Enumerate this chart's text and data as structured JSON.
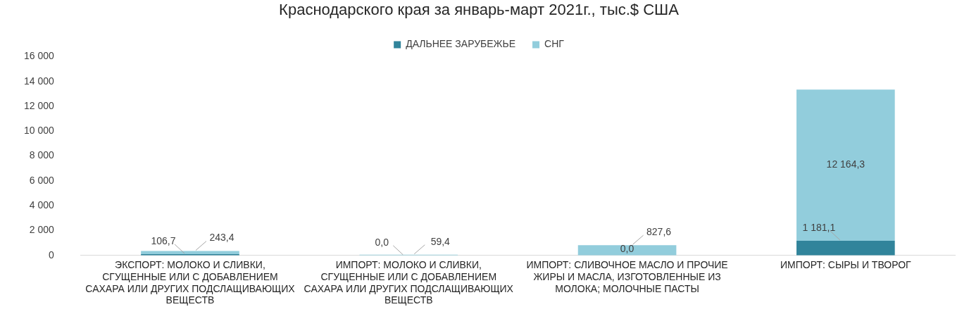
{
  "chart_data": {
    "type": "bar",
    "stacked": true,
    "title": "Краснодарского края за январь-март 2021г., тыс.$ США",
    "categories": [
      "ЭКСПОРТ: МОЛОКО И СЛИВКИ, СГУЩЕННЫЕ ИЛИ С ДОБАВЛЕНИЕМ САХАРА ИЛИ ДРУГИХ ПОДСЛАЩИВАЮЩИХ ВЕЩЕСТВ",
      "ИМПОРТ: МОЛОКО И СЛИВКИ, СГУЩЕННЫЕ ИЛИ С ДОБАВЛЕНИЕМ САХАРА ИЛИ ДРУГИХ ПОДСЛАЩИВАЮЩИХ ВЕЩЕСТВ",
      "ИМПОРТ: СЛИВОЧНОЕ МАСЛО И ПРОЧИЕ ЖИРЫ И МАСЛА, ИЗГОТОВЛЕННЫЕ ИЗ МОЛОКА; МОЛОЧНЫЕ ПАСТЫ",
      "ИМПОРТ: СЫРЫ И ТВОРОГ"
    ],
    "series": [
      {
        "name": "ДАЛЬНЕЕ ЗАРУБЕЖЬЕ",
        "color": "#31849b",
        "values": [
          106.7,
          0.0,
          0.0,
          1181.1
        ],
        "value_labels": [
          "106,7",
          "0,0",
          "0,0",
          "1 181,1"
        ]
      },
      {
        "name": "СНГ",
        "color": "#92cddc",
        "values": [
          243.4,
          59.4,
          827.6,
          12164.3
        ],
        "value_labels": [
          "243,4",
          "59,4",
          "827,6",
          "12 164,3"
        ]
      }
    ],
    "ylim": [
      0,
      16000
    ],
    "yticks": [
      {
        "value": 0,
        "label": "0"
      },
      {
        "value": 2000,
        "label": "2 000"
      },
      {
        "value": 4000,
        "label": "4 000"
      },
      {
        "value": 6000,
        "label": "6 000"
      },
      {
        "value": 8000,
        "label": "8 000"
      },
      {
        "value": 10000,
        "label": "10 000"
      },
      {
        "value": 12000,
        "label": "12 000"
      },
      {
        "value": 14000,
        "label": "14 000"
      },
      {
        "value": 16000,
        "label": "16 000"
      }
    ],
    "grid": false,
    "legend": "top"
  }
}
